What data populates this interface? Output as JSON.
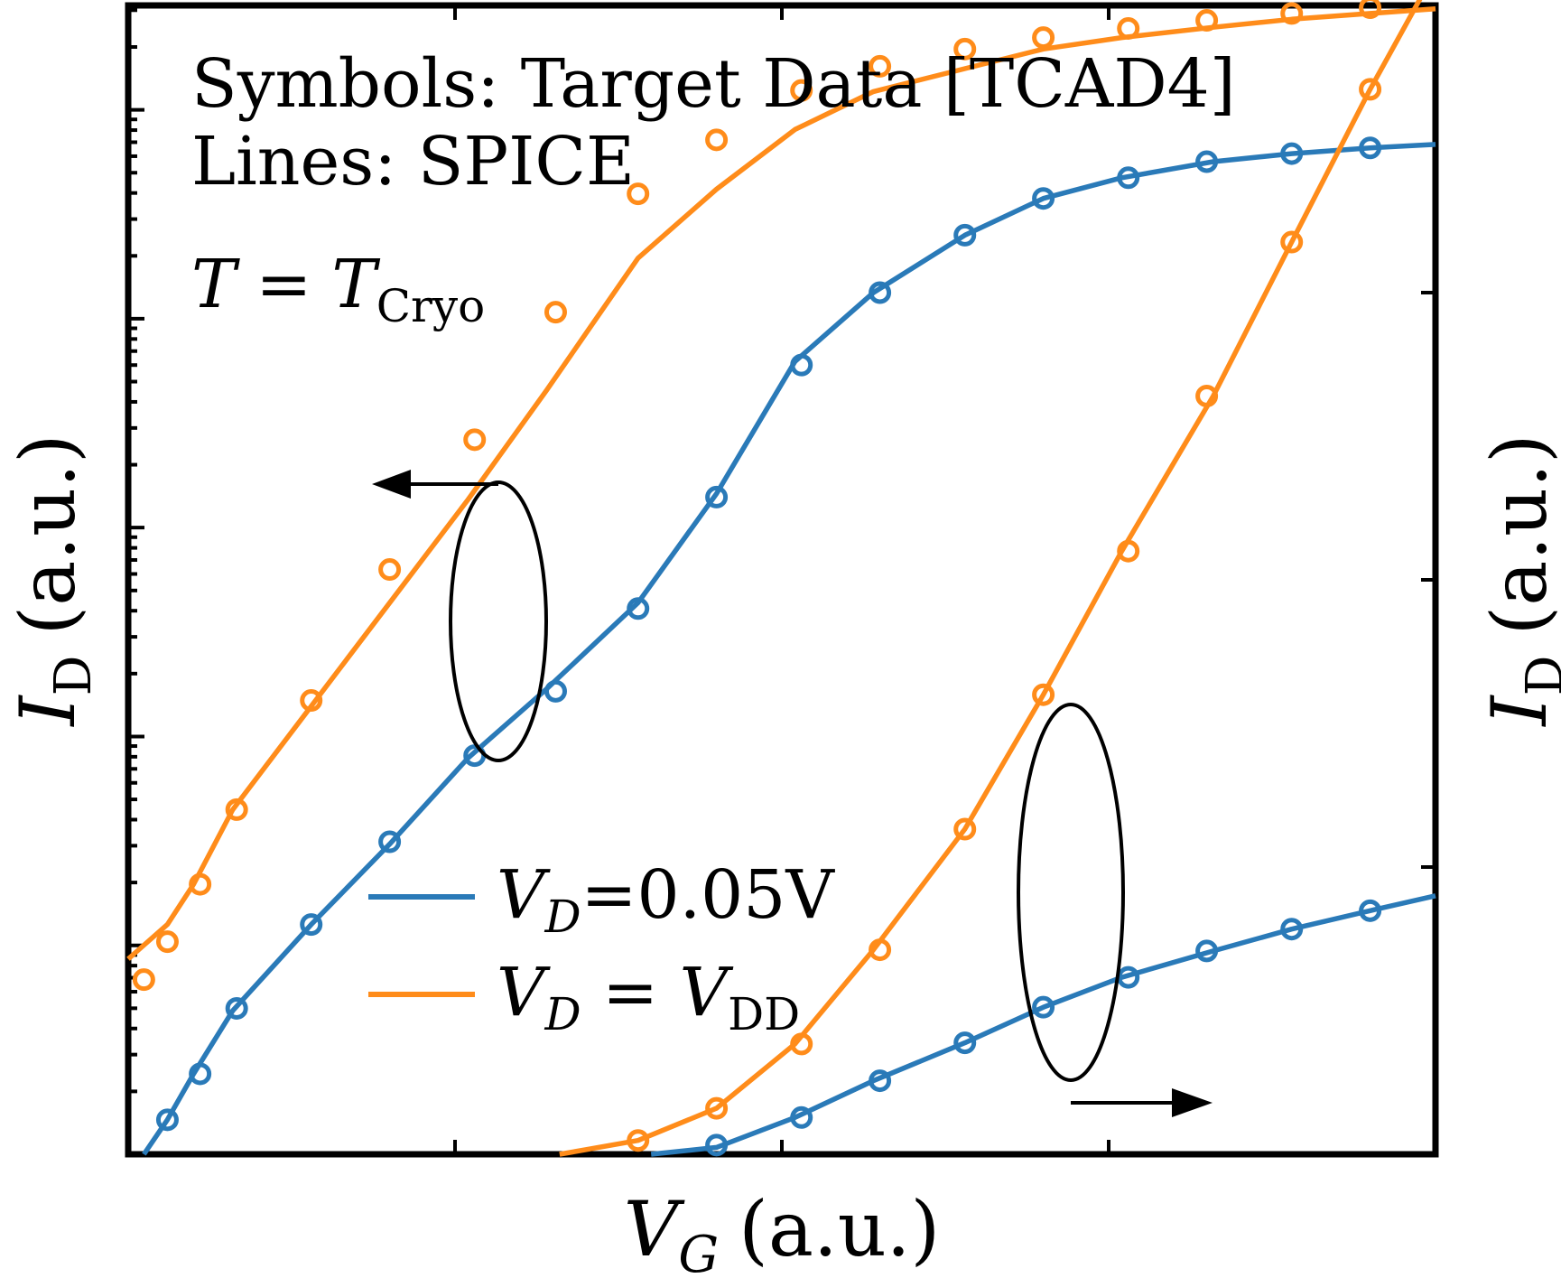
{
  "chart_data": {
    "type": "line",
    "annotations": {
      "line1": "Symbols: Target Data [TCAD4]",
      "line2": "Lines: SPICE",
      "temperature_var": "T",
      "temperature_eq": "=",
      "temperature_sym": "T",
      "temperature_sub": "Cryo"
    },
    "xlabel": {
      "var": "V",
      "sub": "G",
      "unit": "(a.u.)"
    },
    "ylabel_left": {
      "var": "I",
      "sub": "D",
      "unit": "(a.u.)"
    },
    "ylabel_right": {
      "var": "I",
      "sub": "D",
      "unit": "(a.u.)"
    },
    "xlim": [
      0,
      1
    ],
    "ylim": [
      0,
      1
    ],
    "grid": false,
    "legend_position": "lower-center",
    "legend": [
      {
        "var": "V",
        "sub": "D",
        "rest": "=0.05V",
        "color": "#1f77b4"
      },
      {
        "var": "V",
        "sub": "D",
        "rest": " = ",
        "var2": "V",
        "sub2": "DD",
        "color": "#ff7f0e"
      }
    ],
    "colors": {
      "blue": "#2a7ab8",
      "orange": "#ff8c1a",
      "axes": "#000000"
    },
    "series": [
      {
        "key": "blue_log",
        "axis": "left (log)",
        "color": "#2a7ab8",
        "line_x": [
          0.012,
          0.03,
          0.05,
          0.08,
          0.14,
          0.2,
          0.26,
          0.32,
          0.39,
          0.45,
          0.51,
          0.57,
          0.64,
          0.7,
          0.76,
          0.83,
          0.89,
          0.95,
          1.0
        ],
        "line_y": [
          0.0,
          0.03,
          0.07,
          0.125,
          0.2,
          0.27,
          0.345,
          0.405,
          0.48,
          0.575,
          0.69,
          0.75,
          0.8,
          0.832,
          0.85,
          0.864,
          0.871,
          0.876,
          0.879
        ],
        "points_x": [
          0.03,
          0.055,
          0.083,
          0.14,
          0.2,
          0.265,
          0.327,
          0.39,
          0.45,
          0.515,
          0.575,
          0.64,
          0.7,
          0.765,
          0.825,
          0.89,
          0.95
        ],
        "points_y": [
          0.03,
          0.07,
          0.127,
          0.2,
          0.272,
          0.347,
          0.403,
          0.475,
          0.572,
          0.687,
          0.75,
          0.8,
          0.832,
          0.85,
          0.864,
          0.871,
          0.876
        ]
      },
      {
        "key": "orange_log",
        "axis": "left (log)",
        "color": "#ff8c1a",
        "line_x": [
          0.0,
          0.01,
          0.03,
          0.05,
          0.08,
          0.14,
          0.2,
          0.26,
          0.32,
          0.39,
          0.45,
          0.51,
          0.57,
          0.64,
          0.7,
          0.76,
          0.83,
          0.89,
          0.95,
          1.0
        ],
        "line_y": [
          0.17,
          0.18,
          0.2,
          0.235,
          0.3,
          0.39,
          0.48,
          0.57,
          0.665,
          0.78,
          0.84,
          0.892,
          0.925,
          0.945,
          0.962,
          0.972,
          0.981,
          0.988,
          0.993,
          0.997
        ],
        "points_x": [
          0.012,
          0.03,
          0.055,
          0.083,
          0.14,
          0.2,
          0.265,
          0.327,
          0.39,
          0.45,
          0.515,
          0.575,
          0.64,
          0.7,
          0.765,
          0.825,
          0.89,
          0.95
        ],
        "points_y": [
          0.152,
          0.185,
          0.235,
          0.3,
          0.395,
          0.509,
          0.622,
          0.733,
          0.836,
          0.883,
          0.926,
          0.947,
          0.962,
          0.972,
          0.98,
          0.987,
          0.993,
          0.998
        ]
      },
      {
        "key": "blue_lin",
        "axis": "right (linear)",
        "color": "#2a7ab8",
        "line_x": [
          0.4,
          0.45,
          0.51,
          0.57,
          0.64,
          0.7,
          0.76,
          0.83,
          0.89,
          0.95,
          1.0
        ],
        "line_y": [
          0.0,
          0.006,
          0.032,
          0.064,
          0.097,
          0.128,
          0.154,
          0.177,
          0.196,
          0.212,
          0.225
        ],
        "points_x": [
          0.45,
          0.515,
          0.575,
          0.64,
          0.7,
          0.765,
          0.825,
          0.89,
          0.95
        ],
        "points_y": [
          0.008,
          0.032,
          0.064,
          0.097,
          0.128,
          0.154,
          0.177,
          0.196,
          0.212
        ]
      },
      {
        "key": "orange_lin",
        "axis": "right (linear)",
        "color": "#ff8c1a",
        "line_x": [
          0.33,
          0.39,
          0.45,
          0.51,
          0.57,
          0.64,
          0.7,
          0.76,
          0.83,
          0.89,
          0.95,
          1.0
        ],
        "line_y": [
          0.0,
          0.012,
          0.04,
          0.096,
          0.178,
          0.283,
          0.4,
          0.525,
          0.66,
          0.794,
          0.927,
          1.03
        ],
        "points_x": [
          0.39,
          0.45,
          0.515,
          0.575,
          0.64,
          0.7,
          0.765,
          0.825,
          0.89,
          0.95
        ],
        "points_y": [
          0.012,
          0.04,
          0.096,
          0.178,
          0.283,
          0.4,
          0.525,
          0.66,
          0.794,
          0.927
        ]
      }
    ]
  }
}
